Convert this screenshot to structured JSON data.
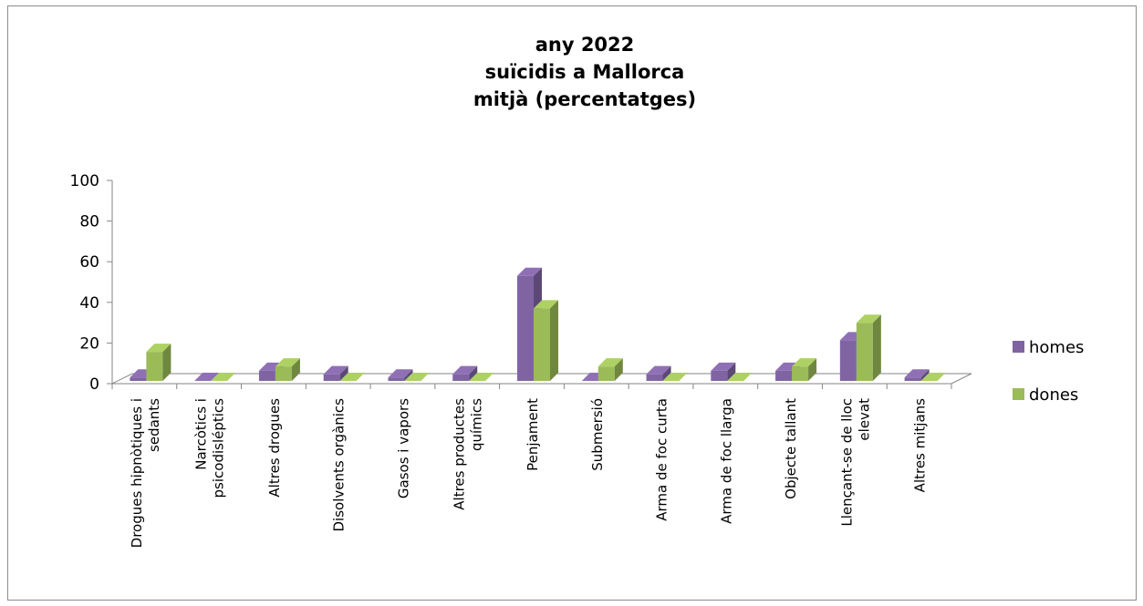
{
  "chart_data": {
    "type": "bar",
    "style": "3d-clustered-column",
    "title_lines": [
      "any 2022",
      "suïcidis a Mallorca",
      "mitjà (percentatges)"
    ],
    "categories": [
      [
        "Drogues hipnòtiques i",
        "sedants"
      ],
      [
        "Narcòtics i",
        "psicodisléptics"
      ],
      [
        "Altres drogues"
      ],
      [
        "Disolvents orgànics"
      ],
      [
        "Gasos i vapors"
      ],
      [
        "Altres productes",
        "químics"
      ],
      [
        "Penjament"
      ],
      [
        "Submersió"
      ],
      [
        "Arma de foc curta"
      ],
      [
        "Arma de foc llarga"
      ],
      [
        "Objecte tallant"
      ],
      [
        "Llençant-se de lloc",
        "elevat"
      ],
      [
        "Altres mitjans"
      ]
    ],
    "series": [
      {
        "name": "homes",
        "color": "#8064A2",
        "values": [
          1.7,
          0,
          5,
          3.3,
          1.7,
          3.3,
          51.7,
          0,
          3.3,
          5,
          5,
          20,
          1.7
        ]
      },
      {
        "name": "dones",
        "color": "#9BBB59",
        "values": [
          14.3,
          0,
          7.1,
          0,
          0,
          0,
          35.7,
          7.1,
          0,
          0,
          7.1,
          28.6,
          0
        ]
      }
    ],
    "y_ticks": [
      0,
      20,
      40,
      60,
      80,
      100
    ],
    "ylim": [
      0,
      100
    ],
    "gridlines": false,
    "legend_position": "right"
  }
}
